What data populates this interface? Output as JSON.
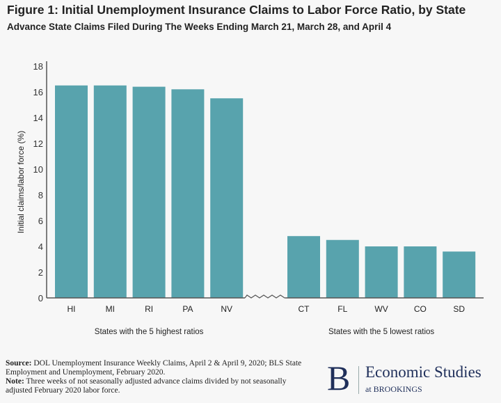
{
  "chart_data": {
    "type": "bar",
    "title": "Figure 1: Initial Unemployment Insurance Claims to Labor Force Ratio, by State",
    "subtitle": "Advance State Claims Filed During The Weeks Ending March 21, March 28, and April 4",
    "ylabel": "Initial claims/labor force (%)",
    "ylim": [
      0,
      18
    ],
    "yticks": [
      "0",
      "2",
      "4",
      "6",
      "8",
      "10",
      "12",
      "14",
      "16",
      "18"
    ],
    "grid": false,
    "color": "#58a3ad",
    "groups": [
      {
        "label": "States with the 5 highest ratios",
        "categories": [
          "HI",
          "MI",
          "RI",
          "PA",
          "NV"
        ],
        "values": [
          16.5,
          16.5,
          16.4,
          16.2,
          15.5
        ]
      },
      {
        "label": "States with the 5 lowest ratios",
        "categories": [
          "CT",
          "FL",
          "WV",
          "CO",
          "SD"
        ],
        "values": [
          4.8,
          4.5,
          4.0,
          4.0,
          3.6
        ]
      }
    ]
  },
  "notes": {
    "source_label": "Source:",
    "source_text": " DOL Unemployment Insurance Weekly Claims, April 2 & April 9, 2020; BLS State Employment and Unemployment, February 2020.",
    "note_label": "Note:",
    "note_text": " Three weeks of not seasonally adjusted advance claims divided by not seasonally adjusted February 2020 labor force."
  },
  "logo": {
    "letter": "B",
    "name": "Economic Studies",
    "sub": "at BROOKINGS"
  }
}
